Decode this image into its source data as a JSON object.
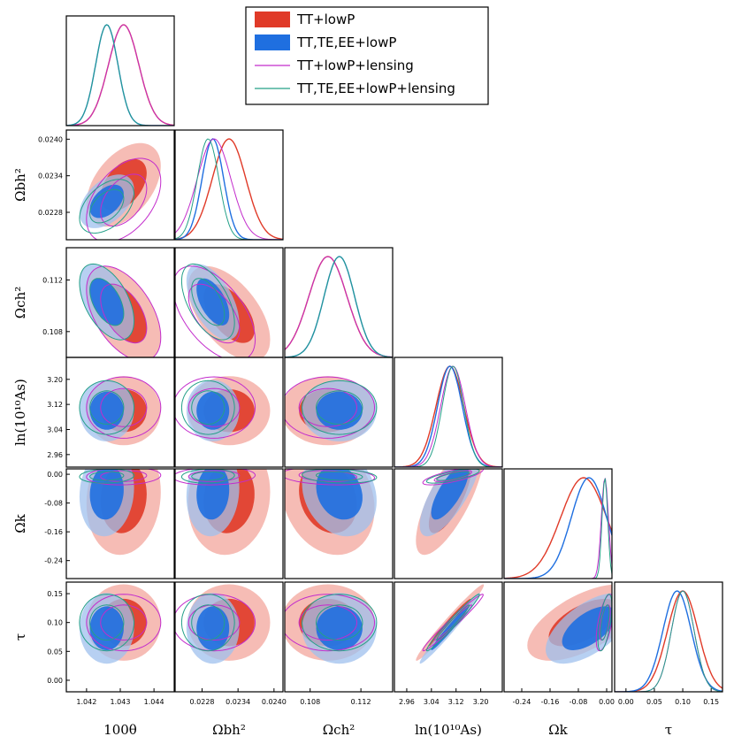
{
  "chart_data": {
    "type": "triangle",
    "parameters": [
      {
        "id": "theta",
        "label": "100θ",
        "range": [
          1.0414,
          1.0446
        ],
        "ticks": [
          1.042,
          1.043,
          1.044
        ],
        "tick_labels": [
          "1.042",
          "1.043",
          "1.044"
        ]
      },
      {
        "id": "omegab",
        "label": "Ωbh²",
        "range": [
          0.02235,
          0.02415
        ],
        "ticks": [
          0.0228,
          0.0234,
          0.024
        ],
        "tick_labels": [
          "0.0228",
          "0.0234",
          "0.0240"
        ]
      },
      {
        "id": "omegac",
        "label": "Ωch²",
        "range": [
          0.106,
          0.1145
        ],
        "ticks": [
          0.108,
          0.112
        ],
        "tick_labels": [
          "0.108",
          "0.112"
        ]
      },
      {
        "id": "lnAs",
        "label": "ln(10¹⁰As)",
        "range": [
          2.92,
          3.27
        ],
        "ticks": [
          2.96,
          3.04,
          3.12,
          3.2
        ],
        "tick_labels": [
          "2.96",
          "3.04",
          "3.12",
          "3.20"
        ]
      },
      {
        "id": "omegak",
        "label": "Ωk",
        "range": [
          -0.29,
          0.015
        ],
        "ticks": [
          -0.24,
          -0.16,
          -0.08,
          0.0
        ],
        "tick_labels": [
          "-0.24",
          "-0.16",
          "-0.08",
          "0.00"
        ]
      },
      {
        "id": "tau",
        "label": "τ",
        "range": [
          -0.02,
          0.17
        ],
        "ticks": [
          0.0,
          0.05,
          0.1,
          0.15
        ],
        "tick_labels": [
          "0.00",
          "0.05",
          "0.10",
          "0.15"
        ]
      }
    ],
    "series": [
      {
        "name": "TT+lowP",
        "style": "filled",
        "color": "#e03a28",
        "color_outer": "#f3a59c",
        "mean": [
          1.0431,
          0.02325,
          0.1094,
          3.1,
          -0.065,
          0.1
        ],
        "sigma": [
          0.00045,
          0.00028,
          0.0015,
          0.045,
          0.065,
          0.027
        ]
      },
      {
        "name": "TT,TE,EE+lowP",
        "style": "filled",
        "color": "#1f6fe0",
        "color_outer": "#9fc0ee",
        "mean": [
          1.0426,
          0.02298,
          0.1103,
          3.1,
          -0.05,
          0.09
        ],
        "sigma": [
          0.00033,
          0.00018,
          0.0012,
          0.04,
          0.05,
          0.025
        ]
      },
      {
        "name": "TT+lowP+lensing",
        "style": "line",
        "color": "#c32ccc",
        "mean": [
          1.0431,
          0.023,
          0.1094,
          3.11,
          -0.005,
          0.1
        ],
        "sigma": [
          0.00045,
          0.00028,
          0.0015,
          0.04,
          0.01,
          0.02
        ]
      },
      {
        "name": "TT,TE,EE+lowP+lensing",
        "style": "line",
        "color": "#24a088",
        "mean": [
          1.0426,
          0.0229,
          0.1103,
          3.11,
          -0.005,
          0.1
        ],
        "sigma": [
          0.00033,
          0.00018,
          0.0012,
          0.035,
          0.008,
          0.02
        ]
      }
    ],
    "legend": [
      "TT+lowP",
      "TT,TE,EE+lowP",
      "TT+lowP+lensing",
      "TT,TE,EE+lowP+lensing"
    ],
    "legend_position": "top-right"
  }
}
